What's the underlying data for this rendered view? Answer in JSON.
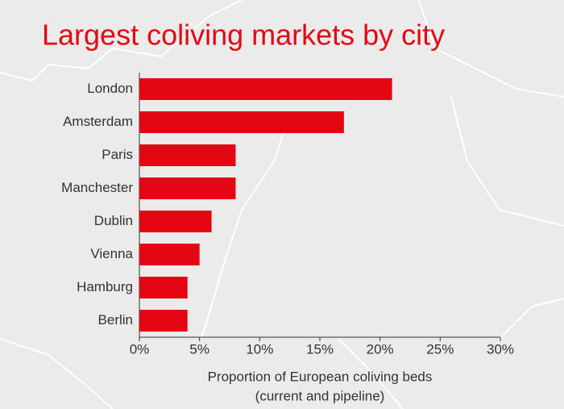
{
  "chart_data": {
    "type": "hbar",
    "title": "Largest coliving markets by city",
    "categories": [
      "London",
      "Amsterdam",
      "Paris",
      "Manchester",
      "Dublin",
      "Vienna",
      "Hamburg",
      "Berlin"
    ],
    "values": [
      21,
      17,
      8,
      8,
      6,
      5,
      4,
      4
    ],
    "color": "#e30613",
    "xlim": [
      0,
      30
    ],
    "xticks": [
      {
        "value": 0,
        "label": "0%"
      },
      {
        "value": 5,
        "label": "5%"
      },
      {
        "value": 10,
        "label": "10%"
      },
      {
        "value": 15,
        "label": "15%"
      },
      {
        "value": 20,
        "label": "20%"
      },
      {
        "value": 25,
        "label": "25%"
      },
      {
        "value": 30,
        "label": "30%"
      }
    ],
    "x_label": [
      "Proportion of European coliving beds",
      "(current and pipeline)"
    ]
  }
}
